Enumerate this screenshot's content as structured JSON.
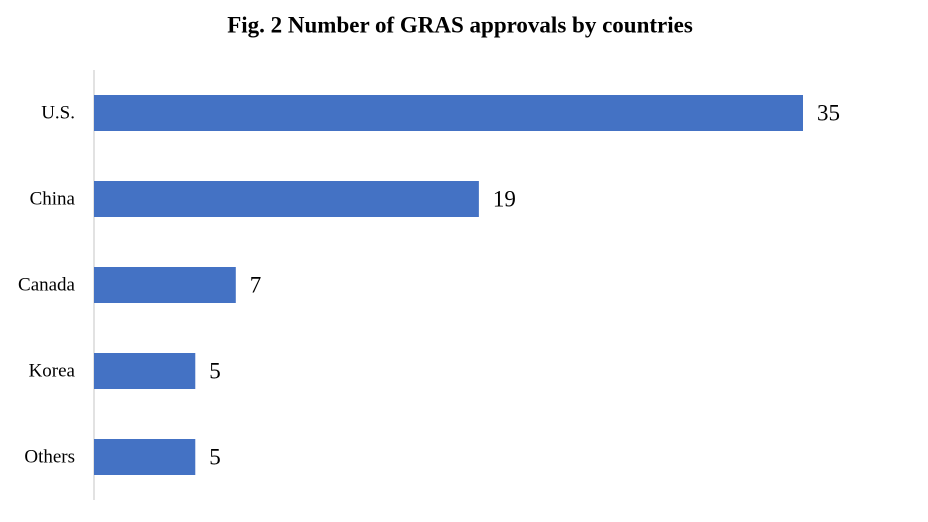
{
  "chart_data": {
    "type": "bar",
    "title": "Fig. 2 Number of GRAS approvals by countries",
    "categories": [
      "U.S.",
      "China",
      "Canada",
      "Korea",
      "Others"
    ],
    "values": [
      35,
      19,
      7,
      5,
      5
    ],
    "color": "#4472c4"
  }
}
